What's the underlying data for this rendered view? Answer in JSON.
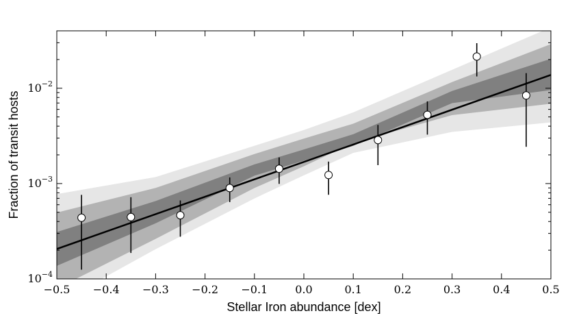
{
  "chart_data": {
    "type": "scatter",
    "title": "",
    "xlabel": "Stellar Iron abundance [dex]",
    "ylabel": "Fraction of transit hosts",
    "xlim": [
      -0.5,
      0.5
    ],
    "ylim": [
      0.0001,
      0.04
    ],
    "yscale": "log",
    "grid": false,
    "legend": "none",
    "x_ticks": [
      -0.5,
      -0.4,
      -0.3,
      -0.2,
      -0.1,
      0.0,
      0.1,
      0.2,
      0.3,
      0.4,
      0.5
    ],
    "x_tick_labels": [
      "−0.5",
      "−0.4",
      "−0.3",
      "−0.2",
      "−0.1",
      "0.0",
      "0.1",
      "0.2",
      "0.3",
      "0.4",
      "0.5"
    ],
    "y_ticks": [
      {
        "value": 0.0001,
        "base": "10",
        "exp": "−4"
      },
      {
        "value": 0.001,
        "base": "10",
        "exp": "−3"
      },
      {
        "value": 0.01,
        "base": "10",
        "exp": "−2"
      }
    ],
    "fit_line": {
      "x": [
        -0.5,
        0.5
      ],
      "y": [
        0.000206,
        0.0138
      ],
      "color": "#000000"
    },
    "bands": [
      {
        "color": "#e6e6e6",
        "x": [
          -0.5,
          -0.3,
          -0.1,
          0.0,
          0.1,
          0.3,
          0.5
        ],
        "lower": [
          5.5e-05,
          0.000205,
          0.000698,
          0.00122,
          0.0021,
          0.00348,
          0.00438
        ],
        "upper": [
          0.000776,
          0.00117,
          0.00249,
          0.00365,
          0.00558,
          0.0156,
          0.0435
        ]
      },
      {
        "color": "#b3b3b3",
        "x": [
          -0.5,
          -0.3,
          -0.1,
          0.0,
          0.1,
          0.3,
          0.5
        ],
        "lower": [
          7.93e-05,
          0.000263,
          0.000897,
          0.00152,
          0.00267,
          0.00522,
          0.00688
        ],
        "upper": [
          0.000496,
          0.000899,
          0.00204,
          0.00296,
          0.00425,
          0.0116,
          0.029
        ]
      },
      {
        "color": "#808080",
        "x": [
          -0.5,
          -0.3,
          -0.1,
          0.0,
          0.1,
          0.3,
          0.5
        ],
        "lower": [
          0.000137,
          0.000383,
          0.00121,
          0.00174,
          0.00249,
          0.00698,
          0.00957
        ],
        "upper": [
          0.00031,
          0.000656,
          0.00159,
          0.00228,
          0.00329,
          0.00935,
          0.0204
        ]
      }
    ],
    "points": [
      {
        "x": -0.45,
        "y": 0.000438,
        "y_low": 0.000125,
        "y_high": 0.000761
      },
      {
        "x": -0.35,
        "y": 0.000445,
        "y_low": 0.000187,
        "y_high": 0.000719
      },
      {
        "x": -0.25,
        "y": 0.000465,
        "y_low": 0.000277,
        "y_high": 0.000665
      },
      {
        "x": -0.15,
        "y": 0.000898,
        "y_low": 0.000639,
        "y_high": 0.00116
      },
      {
        "x": -0.05,
        "y": 0.00143,
        "y_low": 0.000992,
        "y_high": 0.00188
      },
      {
        "x": 0.05,
        "y": 0.00123,
        "y_low": 0.000763,
        "y_high": 0.0017
      },
      {
        "x": 0.15,
        "y": 0.00286,
        "y_low": 0.00156,
        "y_high": 0.00412
      },
      {
        "x": 0.25,
        "y": 0.00526,
        "y_low": 0.00326,
        "y_high": 0.00728
      },
      {
        "x": 0.35,
        "y": 0.0215,
        "y_low": 0.0133,
        "y_high": 0.0297
      },
      {
        "x": 0.45,
        "y": 0.0084,
        "y_low": 0.00243,
        "y_high": 0.0144
      }
    ]
  }
}
